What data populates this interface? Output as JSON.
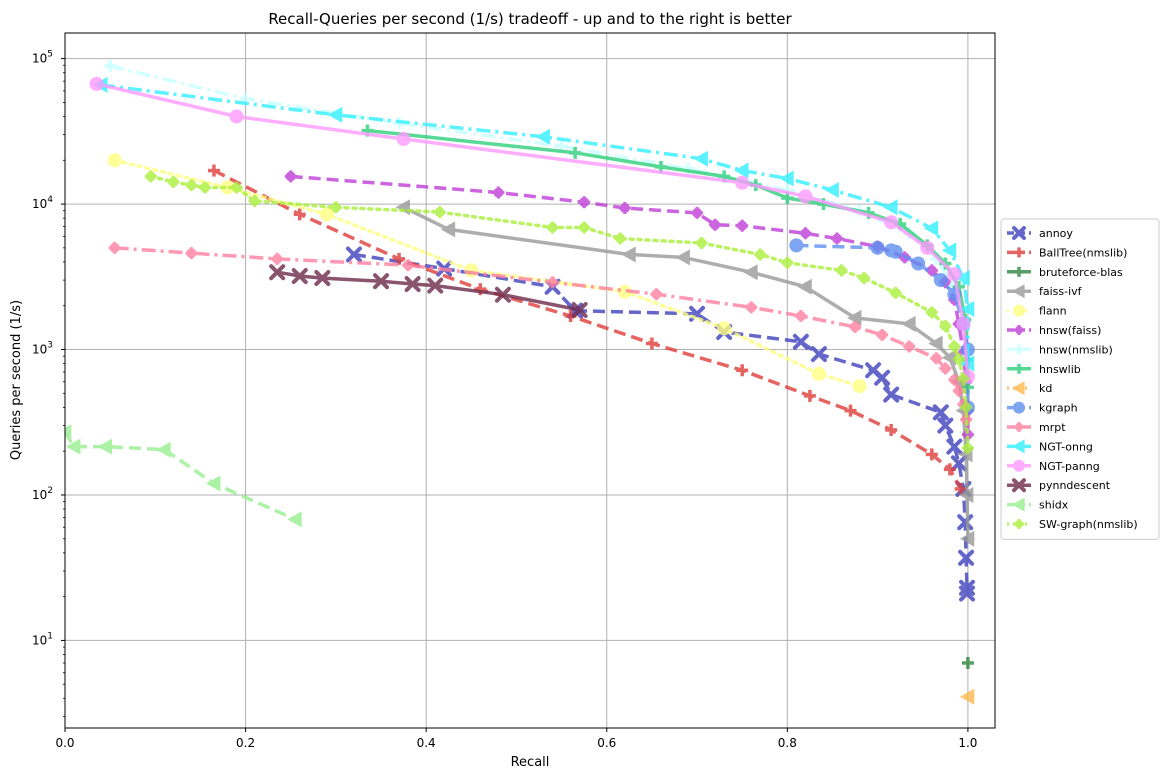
{
  "chart_data": {
    "type": "line",
    "title": "Recall-Queries per second (1/s) tradeoff - up and to the right is better",
    "xlabel": "Recall",
    "ylabel": "Queries per second (1/s)",
    "xlim": [
      0.0,
      1.03
    ],
    "ylim": [
      2.5,
      150000
    ],
    "xscale": "linear",
    "yscale": "log",
    "grid": true,
    "legend_position": "right",
    "x_ticks": [
      "0.0",
      "0.2",
      "0.4",
      "0.6",
      "0.8",
      "1.0"
    ],
    "x_tick_values": [
      0.0,
      0.2,
      0.4,
      0.6,
      0.8,
      1.0
    ],
    "y_ticks": [
      {
        "base": "10",
        "exp": "1",
        "value": 10
      },
      {
        "base": "10",
        "exp": "2",
        "value": 100
      },
      {
        "base": "10",
        "exp": "3",
        "value": 1000
      },
      {
        "base": "10",
        "exp": "4",
        "value": 10000
      },
      {
        "base": "10",
        "exp": "5",
        "value": 100000
      }
    ],
    "series": [
      {
        "name": "annoy",
        "color": "#3f40be",
        "dash": "dash",
        "marker": "x",
        "points": [
          [
            0.32,
            4500
          ],
          [
            0.42,
            3600
          ],
          [
            0.54,
            2700
          ],
          [
            0.565,
            1850
          ],
          [
            0.7,
            1760
          ],
          [
            0.73,
            1320
          ],
          [
            0.815,
            1130
          ],
          [
            0.835,
            930
          ],
          [
            0.895,
            720
          ],
          [
            0.905,
            640
          ],
          [
            0.915,
            490
          ],
          [
            0.97,
            370
          ],
          [
            0.975,
            300
          ],
          [
            0.985,
            215
          ],
          [
            0.99,
            165
          ],
          [
            0.995,
            110
          ],
          [
            0.997,
            65
          ],
          [
            0.998,
            37
          ],
          [
            0.999,
            23
          ],
          [
            0.999,
            21
          ]
        ]
      },
      {
        "name": "BallTree(nmslib)",
        "color": "#df3e3a",
        "dash": "dash",
        "marker": "plus",
        "points": [
          [
            0.165,
            17000
          ],
          [
            0.26,
            8500
          ],
          [
            0.37,
            4200
          ],
          [
            0.46,
            2600
          ],
          [
            0.56,
            1700
          ],
          [
            0.65,
            1100
          ],
          [
            0.75,
            720
          ],
          [
            0.825,
            480
          ],
          [
            0.87,
            380
          ],
          [
            0.915,
            280
          ],
          [
            0.96,
            190
          ],
          [
            0.98,
            150
          ],
          [
            0.992,
            110
          ]
        ]
      },
      {
        "name": "bruteforce-blas",
        "color": "#2e8540",
        "dash": "solid",
        "marker": "plus",
        "points": [
          [
            1.0,
            7
          ]
        ]
      },
      {
        "name": "faiss-ivf",
        "color": "#999999",
        "dash": "solid",
        "marker": "triangle-left",
        "points": [
          [
            0.375,
            9500
          ],
          [
            0.425,
            6700
          ],
          [
            0.625,
            4500
          ],
          [
            0.685,
            4300
          ],
          [
            0.76,
            3400
          ],
          [
            0.82,
            2700
          ],
          [
            0.875,
            1650
          ],
          [
            0.935,
            1500
          ],
          [
            0.965,
            1100
          ],
          [
            0.98,
            880
          ],
          [
            0.99,
            600
          ],
          [
            0.995,
            380
          ],
          [
            0.998,
            190
          ],
          [
            0.999,
            100
          ],
          [
            1.0,
            50
          ]
        ]
      },
      {
        "name": "flann",
        "color": "#ffff80",
        "dash": "dot",
        "marker": "circle",
        "points": [
          [
            0.055,
            20000
          ],
          [
            0.18,
            13000
          ],
          [
            0.29,
            8500
          ],
          [
            0.45,
            3500
          ],
          [
            0.62,
            2500
          ],
          [
            0.73,
            1400
          ],
          [
            0.835,
            680
          ],
          [
            0.88,
            560
          ]
        ]
      },
      {
        "name": "hnsw(faiss)",
        "color": "#c03ed8",
        "dash": "dash",
        "marker": "plus-circle",
        "points": [
          [
            0.25,
            15500
          ],
          [
            0.48,
            12000
          ],
          [
            0.575,
            10300
          ],
          [
            0.62,
            9400
          ],
          [
            0.7,
            8700
          ],
          [
            0.72,
            7200
          ],
          [
            0.75,
            7100
          ],
          [
            0.82,
            6300
          ],
          [
            0.855,
            5800
          ],
          [
            0.9,
            5100
          ],
          [
            0.93,
            4300
          ],
          [
            0.96,
            3500
          ],
          [
            0.975,
            2900
          ],
          [
            0.985,
            2200
          ],
          [
            0.99,
            1500
          ],
          [
            0.995,
            950
          ],
          [
            0.998,
            600
          ],
          [
            1.0,
            380
          ],
          [
            1.0,
            260
          ]
        ]
      },
      {
        "name": "hnsw(nmslib)",
        "color": "#c8ffff",
        "dash": "dashdot",
        "marker": "plus",
        "points": [
          [
            0.05,
            89000
          ],
          [
            0.2,
            53000
          ],
          [
            0.37,
            36000
          ],
          [
            0.55,
            25000
          ],
          [
            0.69,
            17500
          ],
          [
            0.8,
            12500
          ],
          [
            0.88,
            9000
          ],
          [
            0.935,
            6300
          ],
          [
            0.965,
            4200
          ],
          [
            0.985,
            2700
          ],
          [
            0.995,
            1500
          ],
          [
            1.0,
            900
          ]
        ]
      },
      {
        "name": "hnswlib",
        "color": "#2ecf7a",
        "dash": "solid",
        "marker": "plus",
        "points": [
          [
            0.335,
            32000
          ],
          [
            0.565,
            22500
          ],
          [
            0.66,
            18000
          ],
          [
            0.73,
            15500
          ],
          [
            0.765,
            13500
          ],
          [
            0.8,
            11000
          ],
          [
            0.84,
            10000
          ],
          [
            0.89,
            8700
          ],
          [
            0.925,
            7300
          ],
          [
            0.955,
            5200
          ],
          [
            0.975,
            3900
          ],
          [
            0.99,
            2700
          ],
          [
            0.997,
            1600
          ],
          [
            0.999,
            850
          ],
          [
            1.0,
            550
          ]
        ]
      },
      {
        "name": "kd",
        "color": "#ffb84d",
        "dash": "dot",
        "marker": "triangle-left",
        "points": [
          [
            1.0,
            4.1
          ]
        ]
      },
      {
        "name": "kgraph",
        "color": "#5d8ff0",
        "dash": "dash",
        "marker": "circle",
        "points": [
          [
            0.81,
            5200
          ],
          [
            0.9,
            5000
          ],
          [
            0.915,
            4800
          ],
          [
            0.92,
            4700
          ],
          [
            0.945,
            3900
          ],
          [
            0.97,
            3000
          ],
          [
            0.985,
            2400
          ],
          [
            0.995,
            1500
          ],
          [
            1.0,
            1000
          ],
          [
            1.0,
            400
          ]
        ]
      },
      {
        "name": "mrpt",
        "color": "#ff7fa0",
        "dash": "dashdot",
        "marker": "plus-circle",
        "points": [
          [
            0.055,
            5000
          ],
          [
            0.14,
            4600
          ],
          [
            0.235,
            4200
          ],
          [
            0.38,
            3800
          ],
          [
            0.54,
            2900
          ],
          [
            0.655,
            2400
          ],
          [
            0.76,
            1950
          ],
          [
            0.815,
            1700
          ],
          [
            0.875,
            1430
          ],
          [
            0.905,
            1260
          ],
          [
            0.935,
            1050
          ],
          [
            0.965,
            870
          ],
          [
            0.975,
            740
          ],
          [
            0.985,
            620
          ],
          [
            0.99,
            520
          ],
          [
            0.995,
            420
          ],
          [
            0.998,
            330
          ]
        ]
      },
      {
        "name": "NGT-onng",
        "color": "#33f0ff",
        "dash": "dashdot",
        "marker": "triangle-left",
        "points": [
          [
            0.04,
            66000
          ],
          [
            0.3,
            41000
          ],
          [
            0.53,
            29000
          ],
          [
            0.705,
            20500
          ],
          [
            0.75,
            17000
          ],
          [
            0.8,
            15000
          ],
          [
            0.85,
            12500
          ],
          [
            0.915,
            9500
          ],
          [
            0.96,
            6800
          ],
          [
            0.98,
            4800
          ],
          [
            0.995,
            3100
          ],
          [
            1.0,
            1900
          ],
          [
            1.0,
            800
          ]
        ]
      },
      {
        "name": "NGT-panng",
        "color": "#ff99ff",
        "dash": "solid",
        "marker": "circle",
        "points": [
          [
            0.035,
            67000
          ],
          [
            0.19,
            40000
          ],
          [
            0.375,
            28000
          ],
          [
            0.75,
            14000
          ],
          [
            0.82,
            11300
          ],
          [
            0.915,
            7500
          ],
          [
            0.955,
            5000
          ],
          [
            0.985,
            3300
          ],
          [
            0.995,
            1500
          ],
          [
            1.0,
            650
          ]
        ]
      },
      {
        "name": "pynndescent",
        "color": "#6e2a4a",
        "dash": "solid",
        "marker": "x",
        "points": [
          [
            0.235,
            3400
          ],
          [
            0.26,
            3200
          ],
          [
            0.285,
            3100
          ],
          [
            0.35,
            2950
          ],
          [
            0.385,
            2820
          ],
          [
            0.41,
            2750
          ],
          [
            0.485,
            2380
          ],
          [
            0.57,
            1870
          ]
        ]
      },
      {
        "name": "shidx",
        "color": "#98f090",
        "dash": "dash",
        "marker": "triangle-left",
        "points": [
          [
            0.0,
            270
          ],
          [
            0.01,
            215
          ],
          [
            0.045,
            215
          ],
          [
            0.11,
            205
          ],
          [
            0.165,
            120
          ],
          [
            0.255,
            68
          ]
        ]
      },
      {
        "name": "SW-graph(nmslib)",
        "color": "#aaf03c",
        "dash": "dot",
        "marker": "plus-circle",
        "points": [
          [
            0.095,
            15500
          ],
          [
            0.12,
            14200
          ],
          [
            0.14,
            13500
          ],
          [
            0.155,
            13000
          ],
          [
            0.19,
            13000
          ],
          [
            0.21,
            10500
          ],
          [
            0.3,
            9500
          ],
          [
            0.415,
            8800
          ],
          [
            0.54,
            6900
          ],
          [
            0.575,
            6900
          ],
          [
            0.615,
            5800
          ],
          [
            0.705,
            5400
          ],
          [
            0.77,
            4500
          ],
          [
            0.8,
            3950
          ],
          [
            0.86,
            3500
          ],
          [
            0.885,
            3100
          ],
          [
            0.92,
            2450
          ],
          [
            0.96,
            1800
          ],
          [
            0.975,
            1450
          ],
          [
            0.985,
            1050
          ],
          [
            0.99,
            860
          ],
          [
            0.995,
            630
          ],
          [
            0.998,
            400
          ],
          [
            1.0,
            210
          ]
        ]
      }
    ]
  }
}
